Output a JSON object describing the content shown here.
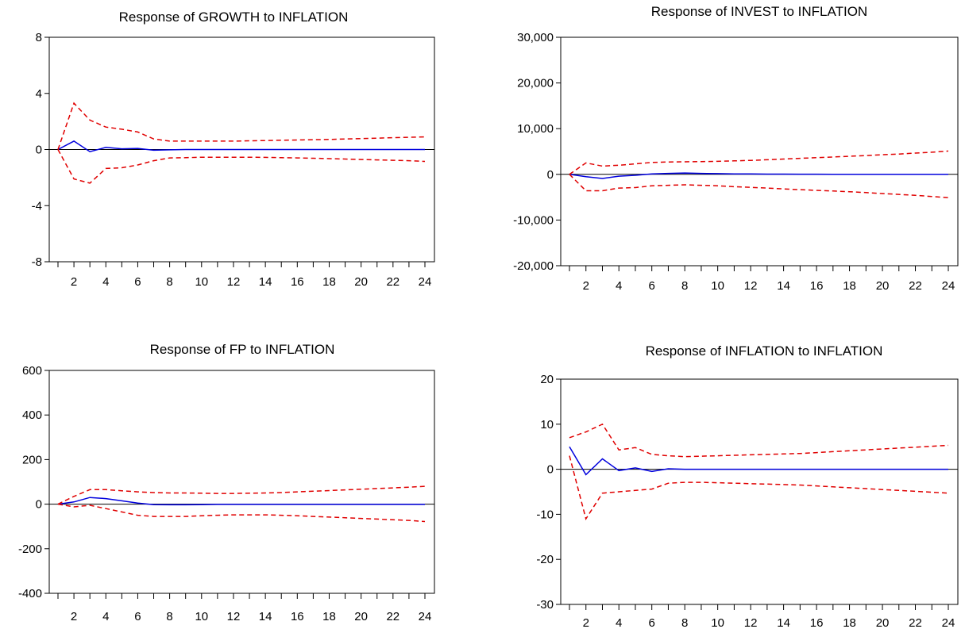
{
  "colors": {
    "response": "#0000dd",
    "band": "#e00000",
    "axis": "#000000",
    "zero": "#000000"
  },
  "chart_data": [
    {
      "type": "line",
      "title": "Response of GROWTH to INFLATION",
      "x": [
        1,
        2,
        3,
        4,
        5,
        6,
        7,
        8,
        9,
        10,
        11,
        12,
        13,
        14,
        15,
        16,
        17,
        18,
        19,
        20,
        21,
        22,
        23,
        24
      ],
      "xticks": [
        "2",
        "4",
        "6",
        "8",
        "10",
        "12",
        "14",
        "16",
        "18",
        "20",
        "22",
        "24"
      ],
      "yticks": [
        "8",
        "4",
        "0",
        "-4",
        "-8"
      ],
      "ylim": [
        -8,
        8
      ],
      "series": [
        {
          "role": "response",
          "style": "solid",
          "values": [
            0,
            0.6,
            -0.15,
            0.15,
            0.05,
            0.08,
            -0.05,
            -0.02,
            0,
            0,
            0,
            0,
            0,
            0,
            0,
            0,
            0,
            0,
            0,
            0,
            0,
            0,
            0,
            0
          ]
        },
        {
          "role": "upper",
          "style": "dashed",
          "values": [
            0,
            3.3,
            2.1,
            1.6,
            1.45,
            1.25,
            0.75,
            0.6,
            0.6,
            0.6,
            0.6,
            0.6,
            0.62,
            0.64,
            0.66,
            0.68,
            0.7,
            0.72,
            0.75,
            0.78,
            0.81,
            0.84,
            0.87,
            0.9
          ]
        },
        {
          "role": "lower",
          "style": "dashed",
          "values": [
            0,
            -2.1,
            -2.4,
            -1.35,
            -1.3,
            -1.1,
            -0.8,
            -0.6,
            -0.58,
            -0.55,
            -0.55,
            -0.55,
            -0.55,
            -0.56,
            -0.58,
            -0.6,
            -0.62,
            -0.65,
            -0.68,
            -0.71,
            -0.74,
            -0.77,
            -0.8,
            -0.85
          ]
        }
      ]
    },
    {
      "type": "line",
      "title": "Response of INVEST to INFLATION",
      "x": [
        1,
        2,
        3,
        4,
        5,
        6,
        7,
        8,
        9,
        10,
        11,
        12,
        13,
        14,
        15,
        16,
        17,
        18,
        19,
        20,
        21,
        22,
        23,
        24
      ],
      "xticks": [
        "2",
        "4",
        "6",
        "8",
        "10",
        "12",
        "14",
        "16",
        "18",
        "20",
        "22",
        "24"
      ],
      "yticks": [
        "30,000",
        "20,000",
        "10,000",
        "0",
        "-10,000",
        "-20,000"
      ],
      "ylim": [
        -20000,
        30000
      ],
      "series": [
        {
          "role": "response",
          "style": "solid",
          "values": [
            0,
            -500,
            -900,
            -400,
            -200,
            100,
            200,
            300,
            200,
            150,
            100,
            80,
            60,
            50,
            40,
            30,
            20,
            10,
            10,
            5,
            0,
            0,
            0,
            0
          ]
        },
        {
          "role": "upper",
          "style": "dashed",
          "values": [
            0,
            2500,
            1800,
            2000,
            2300,
            2600,
            2700,
            2750,
            2800,
            2850,
            2950,
            3050,
            3200,
            3350,
            3500,
            3650,
            3800,
            3950,
            4100,
            4300,
            4450,
            4650,
            4850,
            5100
          ]
        },
        {
          "role": "lower",
          "style": "dashed",
          "values": [
            0,
            -3600,
            -3600,
            -3000,
            -2900,
            -2500,
            -2400,
            -2300,
            -2400,
            -2500,
            -2700,
            -2850,
            -3000,
            -3200,
            -3350,
            -3500,
            -3650,
            -3800,
            -4000,
            -4200,
            -4400,
            -4600,
            -4850,
            -5100
          ]
        }
      ]
    },
    {
      "type": "line",
      "title": "Response of FP to INFLATION",
      "x": [
        1,
        2,
        3,
        4,
        5,
        6,
        7,
        8,
        9,
        10,
        11,
        12,
        13,
        14,
        15,
        16,
        17,
        18,
        19,
        20,
        21,
        22,
        23,
        24
      ],
      "xticks": [
        "2",
        "4",
        "6",
        "8",
        "10",
        "12",
        "14",
        "16",
        "18",
        "20",
        "22",
        "24"
      ],
      "yticks": [
        "600",
        "400",
        "200",
        "0",
        "-200",
        "-400"
      ],
      "ylim": [
        -400,
        600
      ],
      "series": [
        {
          "role": "response",
          "style": "solid",
          "values": [
            0,
            10,
            30,
            25,
            15,
            5,
            -2,
            -3,
            -3,
            -2,
            -1,
            -1,
            -1,
            -1,
            -1,
            -1,
            -1,
            -1,
            -1,
            -1,
            -1,
            -1,
            -1,
            -1
          ]
        },
        {
          "role": "upper",
          "style": "dashed",
          "values": [
            0,
            35,
            65,
            65,
            60,
            55,
            52,
            50,
            50,
            49,
            48,
            48,
            49,
            50,
            52,
            55,
            58,
            61,
            64,
            67,
            70,
            73,
            76,
            80
          ]
        },
        {
          "role": "lower",
          "style": "dashed",
          "values": [
            0,
            -12,
            -5,
            -20,
            -35,
            -50,
            -55,
            -55,
            -55,
            -52,
            -50,
            -48,
            -48,
            -48,
            -50,
            -52,
            -55,
            -58,
            -61,
            -64,
            -67,
            -70,
            -73,
            -78
          ]
        }
      ]
    },
    {
      "type": "line",
      "title": "Response of INFLATION to INFLATION",
      "x": [
        1,
        2,
        3,
        4,
        5,
        6,
        7,
        8,
        9,
        10,
        11,
        12,
        13,
        14,
        15,
        16,
        17,
        18,
        19,
        20,
        21,
        22,
        23,
        24
      ],
      "xticks": [
        "2",
        "4",
        "6",
        "8",
        "10",
        "12",
        "14",
        "16",
        "18",
        "20",
        "22",
        "24"
      ],
      "yticks": [
        "20",
        "10",
        "0",
        "-10",
        "-20",
        "-30"
      ],
      "ylim": [
        -30,
        20
      ],
      "series": [
        {
          "role": "response",
          "style": "solid",
          "values": [
            5,
            -1.2,
            2.3,
            -0.3,
            0.3,
            -0.5,
            0.1,
            0,
            0,
            0,
            0,
            0,
            0,
            0,
            0,
            0,
            0,
            0,
            0,
            0,
            0,
            0,
            0,
            0
          ]
        },
        {
          "role": "upper",
          "style": "dashed",
          "values": [
            7,
            8.3,
            10,
            4.3,
            4.8,
            3.3,
            3,
            2.8,
            2.9,
            3,
            3.1,
            3.2,
            3.3,
            3.4,
            3.5,
            3.7,
            3.9,
            4.1,
            4.3,
            4.5,
            4.7,
            4.9,
            5.1,
            5.3
          ]
        },
        {
          "role": "lower",
          "style": "dashed",
          "values": [
            3,
            -11,
            -5.3,
            -5,
            -4.7,
            -4.4,
            -3.1,
            -2.9,
            -2.9,
            -3,
            -3.1,
            -3.2,
            -3.3,
            -3.4,
            -3.5,
            -3.7,
            -3.9,
            -4.1,
            -4.3,
            -4.5,
            -4.7,
            -4.9,
            -5.1,
            -5.3
          ]
        }
      ]
    }
  ]
}
